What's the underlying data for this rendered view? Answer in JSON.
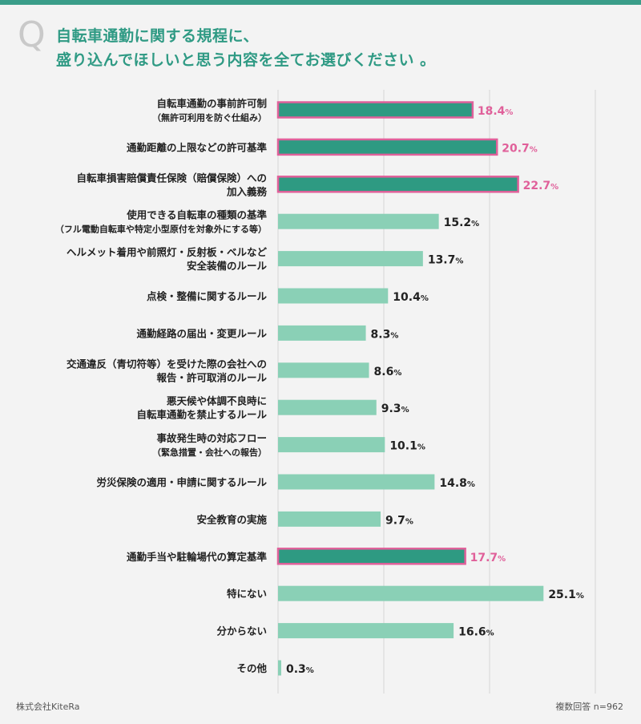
{
  "question_mark": "Q",
  "title_lines": [
    "自転車通勤に関する規程に、",
    "盛り込んでほしいと思う内容を全てお選びください 。"
  ],
  "footer": {
    "company": "株式会社KiteRa",
    "note": "複数回答 n=962"
  },
  "colors": {
    "header_bar": "#3a9d89",
    "title": "#2f9a84",
    "bar_normal": "#8ad0b6",
    "bar_highlight": "#2e9a82",
    "highlight_border": "#e0609a",
    "highlight_label": "#e0609a",
    "value_label": "#222222",
    "gridline": "#d4d4d4"
  },
  "chart_data": {
    "type": "bar",
    "orientation": "horizontal",
    "unit": "%",
    "xlim": [
      0,
      30
    ],
    "grid": true,
    "categories": [
      [
        "自転車通勤の事前許可制",
        "（無許可利用を防ぐ仕組み）"
      ],
      [
        "通勤距離の上限などの許可基準"
      ],
      [
        "自転車損害賠償責任保険（賠償保険）への",
        "加入義務"
      ],
      [
        "使用できる自転車の種類の基準",
        "（フル電動自転車や特定小型原付を対象外にする等）"
      ],
      [
        "ヘルメット着用や前照灯・反射板・ベルなど",
        "安全装備のルール"
      ],
      [
        "点検・整備に関するルール"
      ],
      [
        "通勤経路の届出・変更ルール"
      ],
      [
        "交通違反（青切符等）を受けた際の会社への",
        "報告・許可取消のルール"
      ],
      [
        "悪天候や体調不良時に",
        "自転車通勤を禁止するルール"
      ],
      [
        "事故発生時の対応フロー",
        "（緊急措置・会社への報告）"
      ],
      [
        "労災保険の適用・申請に関するルール"
      ],
      [
        "安全教育の実施"
      ],
      [
        "通勤手当や駐輪場代の算定基準"
      ],
      [
        "特にない"
      ],
      [
        "分からない"
      ],
      [
        "その他"
      ]
    ],
    "values": [
      18.4,
      20.7,
      22.7,
      15.2,
      13.7,
      10.4,
      8.3,
      8.6,
      9.3,
      10.1,
      14.8,
      9.7,
      17.7,
      25.1,
      16.6,
      0.3
    ],
    "value_labels": [
      "18.4",
      "20.7",
      "22.7",
      "15.2",
      "13.7",
      "10.4",
      "8.3",
      "8.6",
      "9.3",
      "10.1",
      "14.8",
      "9.7",
      "17.7",
      "25.1",
      "16.6",
      "0.3"
    ],
    "highlighted": [
      true,
      true,
      true,
      false,
      false,
      false,
      false,
      false,
      false,
      false,
      false,
      false,
      true,
      false,
      false,
      false
    ]
  }
}
